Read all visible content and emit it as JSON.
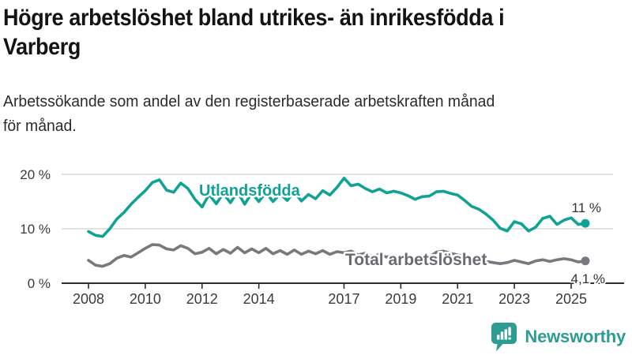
{
  "title_lines": [
    "Högre arbetslöshet bland utrikes- än inrikesfödda i",
    "Varberg"
  ],
  "subtitle_lines": [
    "Arbetssökande som andel av den registerbaserade arbetskraften månad",
    "för månad."
  ],
  "colors": {
    "title": "#141414",
    "subtitle": "#2b2b2b",
    "gridline": "#d9d9d9",
    "axis": "#2e2e2e",
    "tick_text": "#3b3b3b",
    "value_text": "#333333",
    "teal": "#11a296",
    "gray_line": "#78787e",
    "gray_label": "#6a6a70",
    "logo_teal": "#2d9c93",
    "background": "#ffffff"
  },
  "chart_data": {
    "type": "line",
    "title": "Högre arbetslöshet bland utrikes- än inrikesfödda i Varberg",
    "subtitle": "Arbetssökande som andel av den registerbaserade arbetskraften månad för månad.",
    "grid": "horizontal-only",
    "legend_position": "inline-labels-on-lines",
    "xlim": [
      2007.8,
      2026.3
    ],
    "ylim": [
      0,
      21
    ],
    "x_axis": {
      "ticks": [
        2008,
        2010,
        2012,
        2014,
        2017,
        2019,
        2021,
        2023,
        2025
      ],
      "tick_labels": [
        "2008",
        "2010",
        "2012",
        "2014",
        "2017",
        "2019",
        "2021",
        "2023",
        "2025"
      ]
    },
    "y_axis": {
      "ticks": [
        0,
        10,
        20
      ],
      "tick_labels": [
        "0 %",
        "10 %",
        "20 %"
      ]
    },
    "x_start": 2008.0,
    "x_step": 0.25,
    "series": [
      {
        "id": "utlandsfodda",
        "name": "Utlandsfödda",
        "color": "#11a296",
        "label_color": "#11a296",
        "end_label": "11 %",
        "end_value": 11,
        "values": [
          9.5,
          8.8,
          8.6,
          10.0,
          11.8,
          13.0,
          14.5,
          15.8,
          17.0,
          18.5,
          19.0,
          17.1,
          16.7,
          18.4,
          17.4,
          15.4,
          14.0,
          16.3,
          14.6,
          16.5,
          14.8,
          16.8,
          14.5,
          16.6,
          15.0,
          16.7,
          15.0,
          16.4,
          15.2,
          16.8,
          15.1,
          16.3,
          15.5,
          17.0,
          16.2,
          17.6,
          19.3,
          17.9,
          18.2,
          17.4,
          16.8,
          17.3,
          16.6,
          16.9,
          16.6,
          16.1,
          15.4,
          15.9,
          16.0,
          16.8,
          16.9,
          16.5,
          16.2,
          15.2,
          14.1,
          13.6,
          12.7,
          11.6,
          10.1,
          9.6,
          11.3,
          10.9,
          9.6,
          10.3,
          11.9,
          12.3,
          10.8,
          11.6,
          12.0,
          10.8,
          11.0
        ]
      },
      {
        "id": "total-arbetsloshet",
        "name": "Total arbetslöshet",
        "color": "#78787e",
        "label_color": "#6a6a70",
        "end_label": "4,1 %",
        "end_value": 4.1,
        "values": [
          4.2,
          3.3,
          3.1,
          3.6,
          4.6,
          5.1,
          4.8,
          5.6,
          6.4,
          7.1,
          7.0,
          6.3,
          6.1,
          6.9,
          6.4,
          5.4,
          5.7,
          6.4,
          5.4,
          6.2,
          5.5,
          6.6,
          5.6,
          6.3,
          5.6,
          6.4,
          5.4,
          6.0,
          5.3,
          6.1,
          5.3,
          5.9,
          5.4,
          6.0,
          5.3,
          5.8,
          5.6,
          5.9,
          5.2,
          5.5,
          4.9,
          5.3,
          4.8,
          5.1,
          4.7,
          4.9,
          4.5,
          4.7,
          4.8,
          5.7,
          5.9,
          5.5,
          5.2,
          4.9,
          4.4,
          4.2,
          4.0,
          3.8,
          3.6,
          3.8,
          4.2,
          3.9,
          3.6,
          4.1,
          4.3,
          4.0,
          4.3,
          4.5,
          4.3,
          3.9,
          4.1
        ]
      }
    ]
  },
  "logo": {
    "text": "Newsworthy"
  }
}
